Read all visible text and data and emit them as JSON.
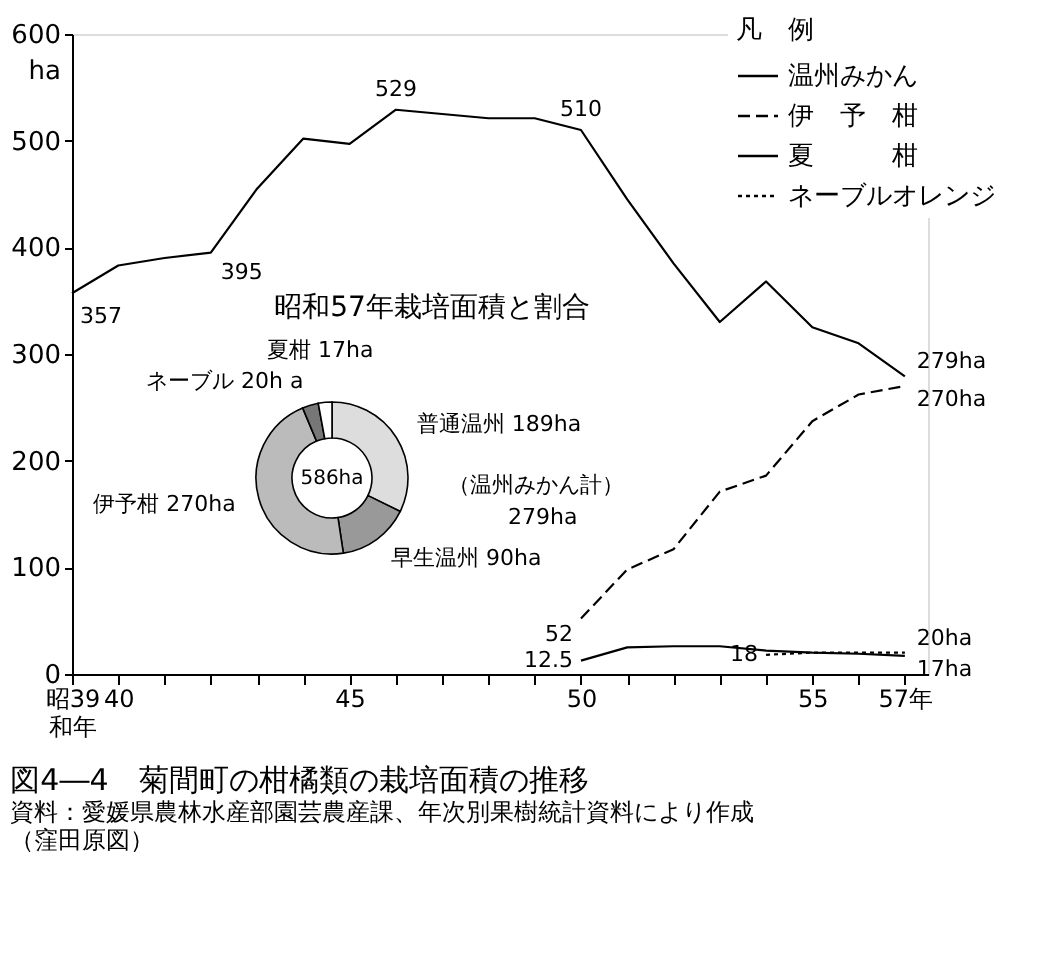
{
  "chart_data": [
    {
      "type": "line",
      "title": "図4―4　菊間町の柑橘類の栽培面積の推移",
      "annotations": [
        "資料：愛媛県農林水産部園芸農産課、年次別果樹統計資料により作成",
        "（窪田原図）"
      ],
      "ylabel": "ha",
      "legend_title": "凡　例",
      "legend": "top right",
      "grid": false,
      "xlim": [
        39,
        57.5
      ],
      "ylim": [
        0,
        600
      ],
      "yticks": [
        0,
        100,
        200,
        300,
        400,
        500,
        600
      ],
      "xticks": [
        {
          "value": 39,
          "label": "昭39\n和年"
        },
        40,
        {
          "value": 41,
          "label": null
        },
        {
          "value": 42,
          "label": null
        },
        {
          "value": 43,
          "label": null
        },
        {
          "value": 44,
          "label": null
        },
        45,
        {
          "value": 46,
          "label": null
        },
        {
          "value": 47,
          "label": null
        },
        {
          "value": 48,
          "label": null
        },
        {
          "value": 49,
          "label": null
        },
        50,
        {
          "value": 51,
          "label": null
        },
        {
          "value": 52,
          "label": null
        },
        {
          "value": 53,
          "label": null
        },
        {
          "value": 54,
          "label": null
        },
        55,
        {
          "value": 56,
          "label": null
        },
        {
          "value": 57,
          "label": "57年"
        }
      ],
      "series": [
        {
          "name": "温州みかん",
          "color": "#000000",
          "line_style": "solid",
          "x": [
            39,
            40,
            41,
            42,
            43,
            44,
            45,
            46,
            47,
            48,
            49,
            50,
            51,
            52,
            53,
            54,
            55,
            56,
            57
          ],
          "values": [
            357,
            383,
            390,
            395,
            455,
            502,
            497,
            529,
            525,
            521,
            521,
            510,
            445,
            385,
            330,
            368,
            325,
            310,
            279
          ],
          "value_labels": [
            "357",
            null,
            null,
            "395",
            null,
            null,
            null,
            "529",
            null,
            null,
            null,
            "510",
            null,
            null,
            null,
            null,
            null,
            null,
            "279ha"
          ]
        },
        {
          "name": "伊　予　柑",
          "color": "#000000",
          "line_style": "dashed",
          "x": [
            50,
            51,
            52,
            53,
            54,
            55,
            56,
            57
          ],
          "values": [
            52,
            98,
            117,
            171,
            186,
            237,
            262,
            270
          ],
          "value_labels": [
            "52",
            null,
            null,
            null,
            null,
            null,
            null,
            "270ha"
          ]
        },
        {
          "name": "夏　　　柑",
          "color": "#000000",
          "line_style": "solid",
          "x": [
            50,
            51,
            52,
            53,
            54,
            55,
            56,
            57
          ],
          "values": [
            12.5,
            25,
            26,
            26,
            22,
            20,
            19,
            17
          ],
          "value_labels": [
            "12.5",
            null,
            null,
            null,
            null,
            null,
            null,
            "17ha"
          ]
        },
        {
          "name": "ネーブルオレンジ",
          "color": "#000000",
          "line_style": "dotted",
          "x": [
            54,
            55,
            56,
            57
          ],
          "values": [
            18,
            20,
            20,
            20
          ],
          "value_labels": [
            "18",
            null,
            null,
            "20ha"
          ]
        }
      ]
    },
    {
      "type": "donut",
      "title": "昭和57年栽培面積と割合",
      "categories": [
        "普通温州",
        "早生温州",
        "伊予柑",
        "ネーブル",
        "夏柑"
      ],
      "values": [
        189,
        90,
        270,
        20,
        17
      ],
      "value_labels": [
        "189ha",
        "90ha",
        "270ha",
        "20h a",
        "17ha"
      ],
      "colors": [
        "#dddddd",
        "#999999",
        "#bbbbbb",
        "#777777",
        "#ffffff"
      ],
      "annotations": [
        "586ha",
        "（温州みかん計）",
        "279ha"
      ]
    }
  ]
}
